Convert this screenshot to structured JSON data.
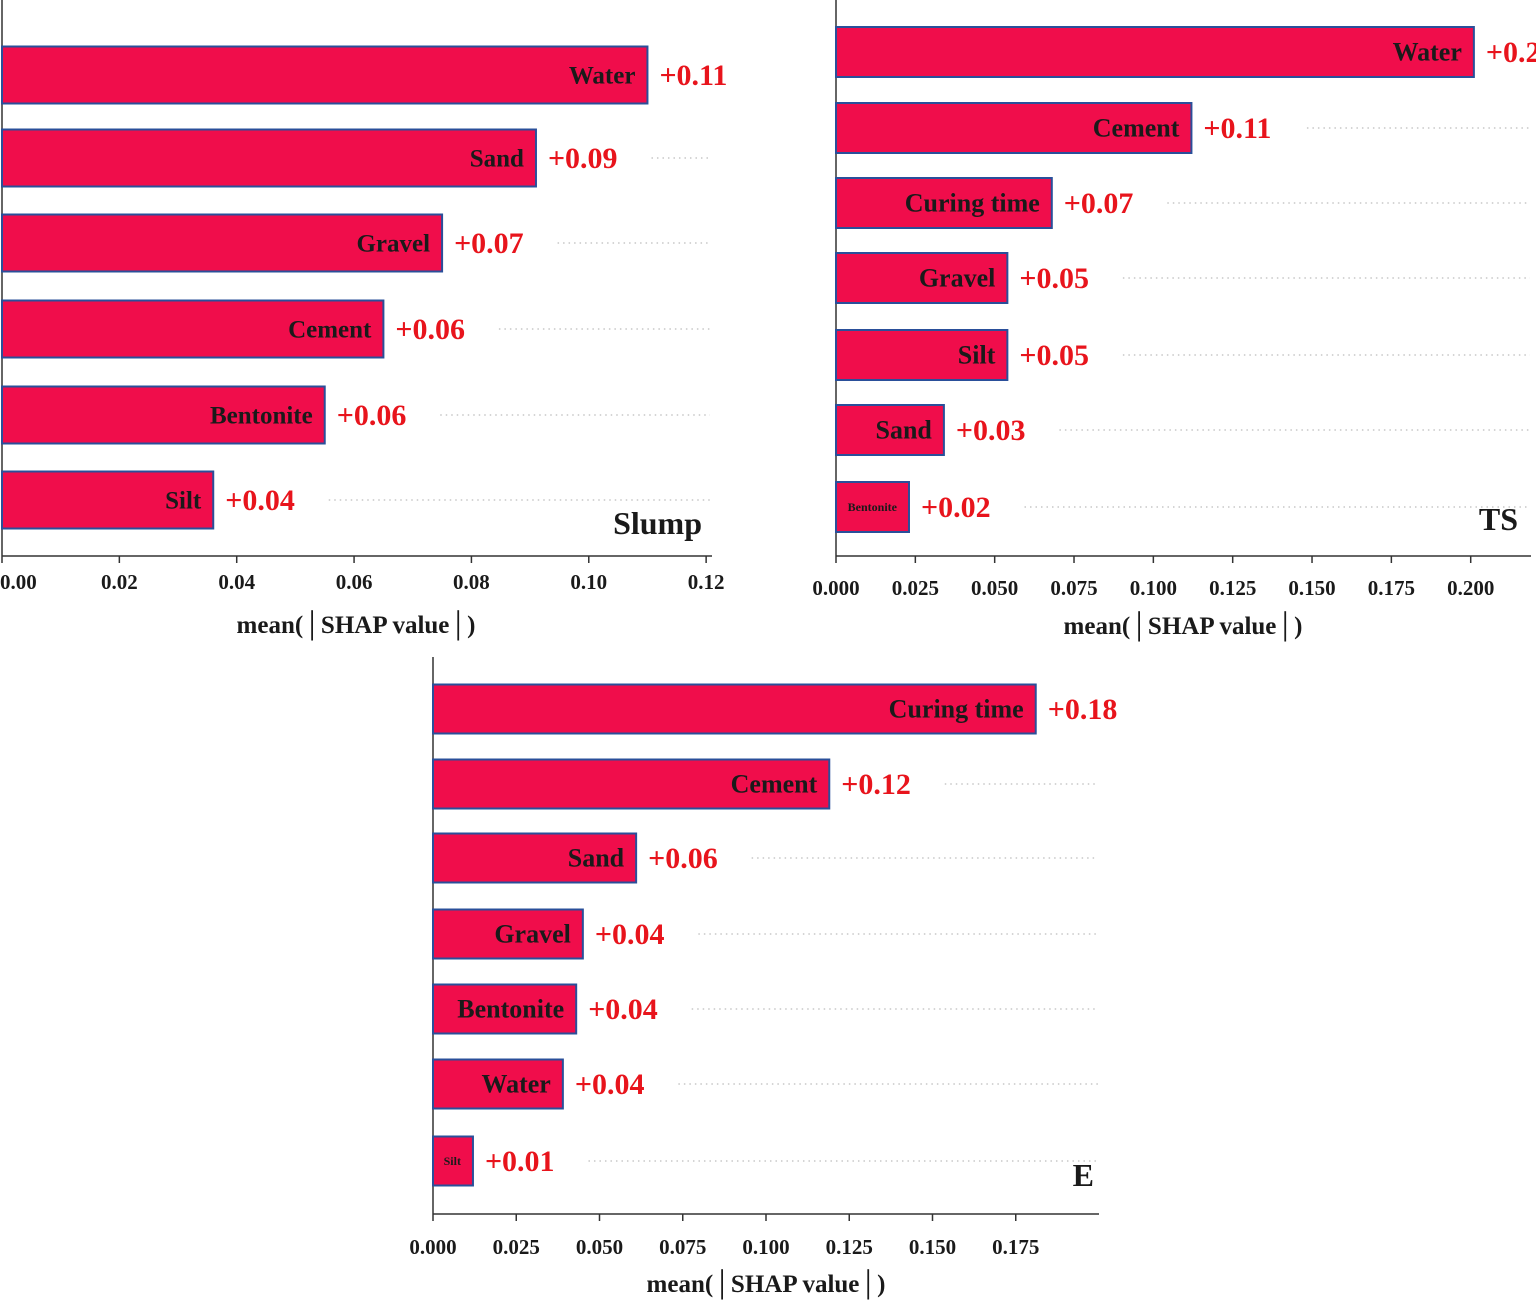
{
  "figure": {
    "bar_color": "#f00d4b",
    "bar_edge_color": "#2a4f9a",
    "value_color": "#e8141c",
    "axis_color": "#333333"
  },
  "chart_data": [
    {
      "id": "slump",
      "type": "bar",
      "orientation": "horizontal",
      "title": "Slump",
      "xlabel": "mean(│SHAP value│)",
      "categories": [
        "Water",
        "Sand",
        "Gravel",
        "Cement",
        "Bentonite",
        "Silt"
      ],
      "values": [
        0.11,
        0.091,
        0.075,
        0.065,
        0.055,
        0.036
      ],
      "value_labels": [
        "+0.11",
        "+0.09",
        "+0.07",
        "+0.06",
        "+0.06",
        "+0.04"
      ],
      "xlim": [
        0,
        0.121
      ],
      "xticks": [
        0,
        0.02,
        0.04,
        0.06,
        0.08,
        0.1,
        0.12
      ],
      "xtick_labels": [
        "0.00",
        "0.02",
        "0.04",
        "0.06",
        "0.08",
        "0.10",
        "0.12"
      ]
    },
    {
      "id": "ts",
      "type": "bar",
      "orientation": "horizontal",
      "title": "TS",
      "xlabel": "mean(│SHAP value│)",
      "categories": [
        "Water",
        "Cement",
        "Curing time",
        "Gravel",
        "Silt",
        "Sand",
        "Bentonite"
      ],
      "values": [
        0.201,
        0.112,
        0.068,
        0.054,
        0.054,
        0.034,
        0.023
      ],
      "value_labels": [
        "+0.2",
        "+0.11",
        "+0.07",
        "+0.05",
        "+0.05",
        "+0.03",
        "+0.02"
      ],
      "xlim": [
        0,
        0.219
      ],
      "xticks": [
        0,
        0.025,
        0.05,
        0.075,
        0.1,
        0.125,
        0.15,
        0.175,
        0.2
      ],
      "xtick_labels": [
        "0.000",
        "0.025",
        "0.050",
        "0.075",
        "0.100",
        "0.125",
        "0.150",
        "0.175",
        "0.200"
      ]
    },
    {
      "id": "e",
      "type": "bar",
      "orientation": "horizontal",
      "title": "E",
      "xlabel": "mean(│SHAP value│)",
      "categories": [
        "Curing time",
        "Cement",
        "Sand",
        "Gravel",
        "Bentonite",
        "Water",
        "Silt"
      ],
      "values": [
        0.181,
        0.119,
        0.061,
        0.045,
        0.043,
        0.039,
        0.012
      ],
      "value_labels": [
        "+0.18",
        "+0.12",
        "+0.06",
        "+0.04",
        "+0.04",
        "+0.04",
        "+0.01"
      ],
      "xlim": [
        0,
        0.2
      ],
      "xticks": [
        0,
        0.025,
        0.05,
        0.075,
        0.1,
        0.125,
        0.15,
        0.175
      ],
      "xtick_labels": [
        "0.000",
        "0.025",
        "0.050",
        "0.075",
        "0.100",
        "0.125",
        "0.150",
        "0.175"
      ]
    }
  ]
}
